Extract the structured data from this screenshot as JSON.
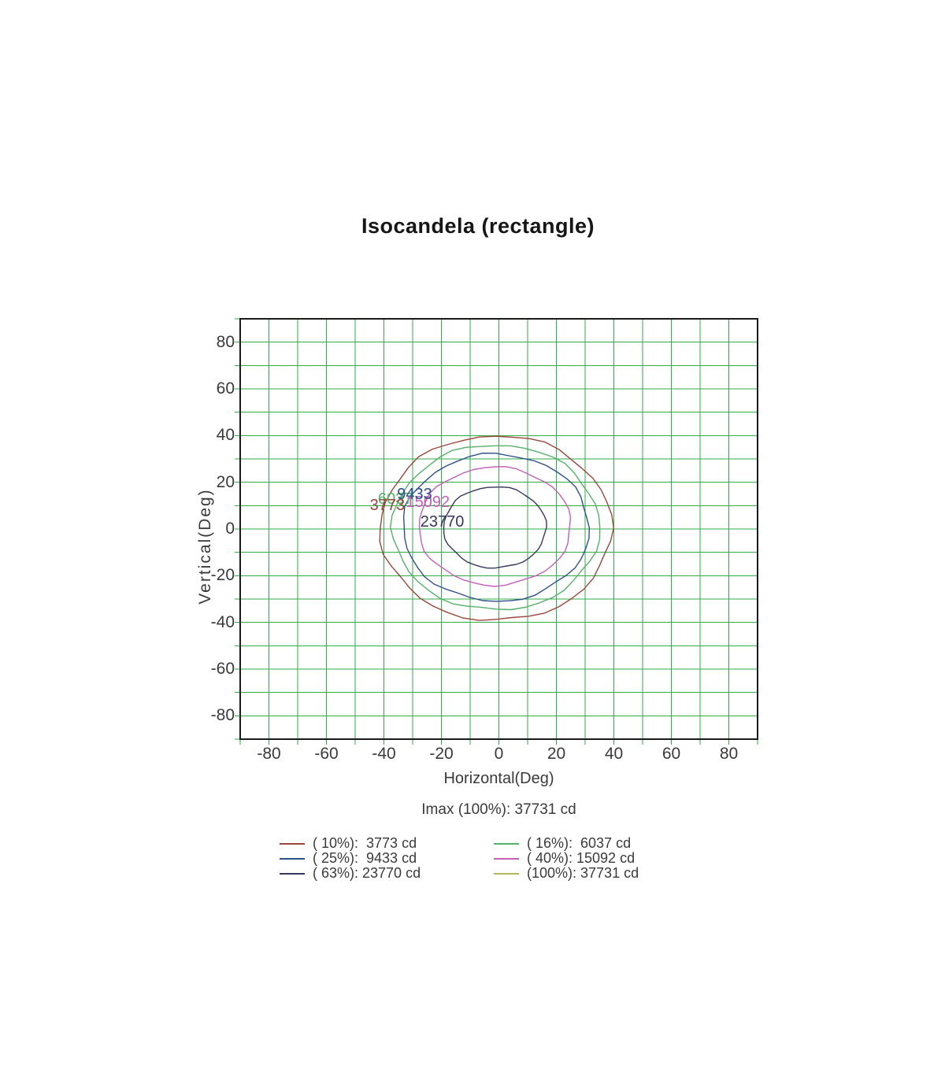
{
  "title": "Isocandela (rectangle)",
  "axes": {
    "x_title": "Horizontal(Deg)",
    "y_title": "Vertical(Deg)",
    "x_tick_labels": [
      "-80",
      "-60",
      "-40",
      "-20",
      "0",
      "20",
      "40",
      "60",
      "80"
    ],
    "y_tick_labels": [
      "80",
      "60",
      "40",
      "20",
      "0",
      "-20",
      "-40",
      "-60",
      "-80"
    ],
    "deg_min": -90,
    "deg_max": 90,
    "grid_step_deg": 10,
    "grid_color": "#2fae47",
    "border_color": "#1b1b1b"
  },
  "imax_label": "Imax (100%): 37731 cd",
  "chart_data": {
    "type": "contour",
    "subtype": "isocandela",
    "title": "Isocandela (rectangle)",
    "xlabel": "Horizontal(Deg)",
    "ylabel": "Vertical(Deg)",
    "xlim": [
      -90,
      90
    ],
    "ylim": [
      -90,
      90
    ],
    "grid": "on, every 10 deg, green",
    "imax_cd": 37731,
    "contours": [
      {
        "percent": "10%",
        "value_cd": 3773,
        "color": "#9a463a",
        "center_deg": [
          -1.0,
          0.4
        ],
        "rx_deg": 40.2,
        "ry_deg": 39.6,
        "label": "3773",
        "label_deg": [
          -38.8,
          10.2
        ],
        "label_order": 3,
        "wobble_phase": 0.8
      },
      {
        "percent": "16%",
        "value_cd": 6037,
        "color": "#55b06a",
        "center_deg": [
          -1.0,
          0.7
        ],
        "rx_deg": 36.0,
        "ry_deg": 35.4,
        "label": "6037",
        "label_deg": [
          -36.0,
          12.8
        ],
        "label_order": 1,
        "wobble_phase": 2.1
      },
      {
        "percent": "25%",
        "value_cd": 9433,
        "color": "#2d508c",
        "center_deg": [
          -1.0,
          0.6
        ],
        "rx_deg": 32.4,
        "ry_deg": 31.5,
        "label": "9433",
        "label_deg": [
          -29.3,
          15.0
        ],
        "label_order": 4,
        "wobble_phase": 3.6
      },
      {
        "percent": "40%",
        "value_cd": 15092,
        "color": "#c35fb9",
        "center_deg": [
          -1.4,
          1.2
        ],
        "rx_deg": 26.5,
        "ry_deg": 25.3,
        "label": "15092",
        "label_deg": [
          -24.7,
          11.6
        ],
        "label_order": 2,
        "wobble_phase": 5.2
      },
      {
        "percent": "63%",
        "value_cd": 23770,
        "color": "#37375f",
        "center_deg": [
          -1.4,
          0.7
        ],
        "rx_deg": 17.8,
        "ry_deg": 17.4,
        "label": "23770",
        "label_deg": [
          -19.7,
          2.9
        ],
        "label_order": 5,
        "wobble_phase": 0.3
      },
      {
        "percent": "100%",
        "value_cd": 37731,
        "color": "#b4b45a",
        "center_deg": [
          0,
          0
        ],
        "rx_deg": 0,
        "ry_deg": 0,
        "label": "",
        "label_deg": null,
        "label_order": 0,
        "wobble_phase": 0
      }
    ]
  },
  "legend": {
    "columns": [
      {
        "items": [
          {
            "text": "( 10%):  3773 cd",
            "color": "#9a463a"
          },
          {
            "text": "( 25%):  9433 cd",
            "color": "#2d508c"
          },
          {
            "text": "( 63%): 23770 cd",
            "color": "#37375f"
          }
        ]
      },
      {
        "items": [
          {
            "text": "( 16%):  6037 cd",
            "color": "#55b06a"
          },
          {
            "text": "( 40%): 15092 cd",
            "color": "#c35fb9"
          },
          {
            "text": "(100%): 37731 cd",
            "color": "#b4b45a"
          }
        ]
      }
    ]
  }
}
